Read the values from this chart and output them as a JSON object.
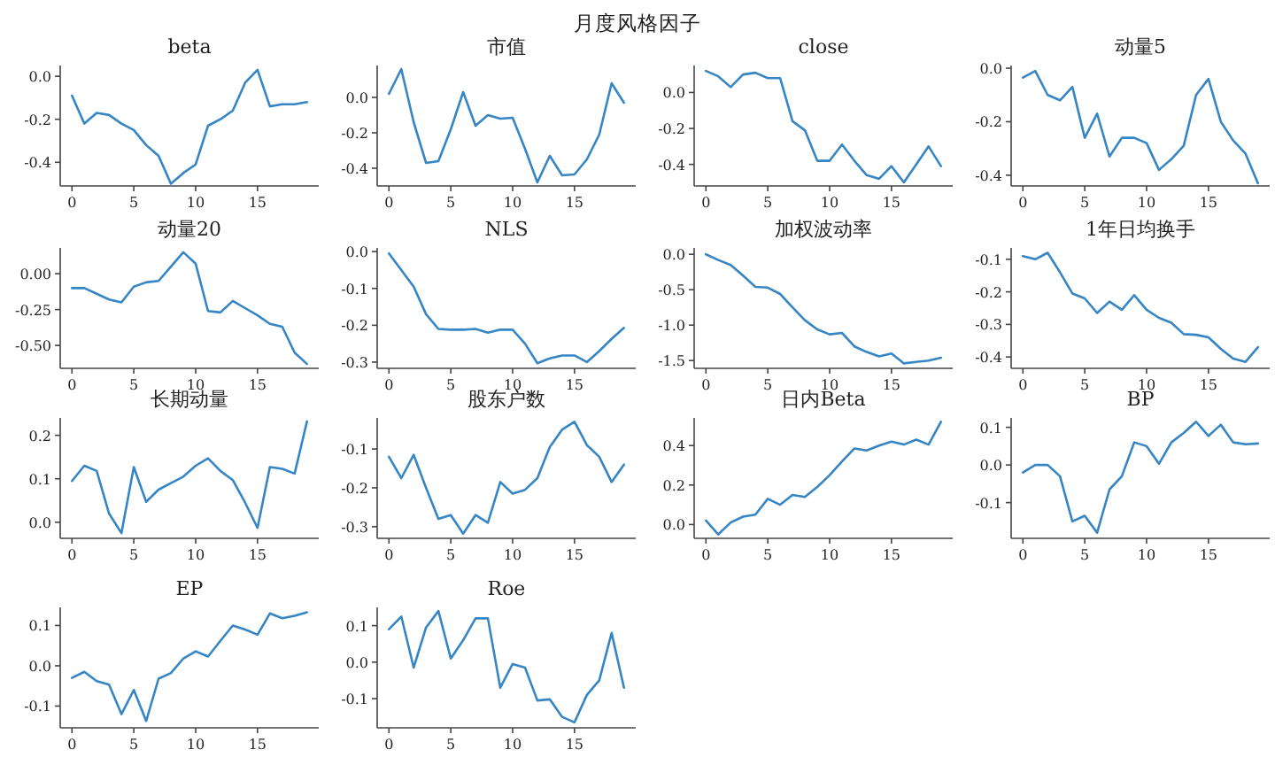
{
  "chart_data": [
    {
      "type": "line",
      "title": "beta",
      "annotations": [
        "月度风格因子"
      ],
      "x": [
        0,
        1,
        2,
        3,
        4,
        5,
        6,
        7,
        8,
        9,
        10,
        11,
        12,
        13,
        14,
        15,
        16,
        17,
        18,
        19
      ],
      "values": [
        -0.09,
        -0.22,
        -0.17,
        -0.18,
        -0.22,
        -0.25,
        -0.32,
        -0.37,
        -0.5,
        -0.45,
        -0.41,
        -0.23,
        -0.2,
        -0.16,
        -0.03,
        0.03,
        -0.14,
        -0.13,
        -0.13,
        -0.12
      ],
      "color": "#3685c4",
      "xlim": [
        -0.95,
        19.95
      ],
      "ylim": [
        -0.51,
        0.05
      ],
      "xticks": [
        0,
        5,
        10,
        15
      ],
      "yticks": [
        -0.4,
        -0.2,
        {
          "value": 0,
          "label": "0.0"
        }
      ]
    },
    {
      "type": "line",
      "title": "市值",
      "x": [
        0,
        1,
        2,
        3,
        4,
        5,
        6,
        7,
        8,
        9,
        10,
        11,
        12,
        13,
        14,
        15,
        16,
        17,
        18,
        19
      ],
      "values": [
        0.02,
        0.16,
        -0.14,
        -0.37,
        -0.36,
        -0.18,
        0.03,
        -0.16,
        -0.1,
        -0.12,
        -0.115,
        -0.29,
        -0.48,
        -0.33,
        -0.44,
        -0.435,
        -0.35,
        -0.21,
        0.08,
        -0.03
      ],
      "color": "#3685c4",
      "xlim": [
        -0.95,
        19.95
      ],
      "ylim": [
        -0.5,
        0.18
      ],
      "xticks": [
        0,
        5,
        10,
        15
      ],
      "yticks": [
        -0.4,
        -0.2,
        {
          "value": 0,
          "label": "0.0"
        }
      ]
    },
    {
      "type": "line",
      "title": "close",
      "x": [
        0,
        1,
        2,
        3,
        4,
        5,
        6,
        7,
        8,
        9,
        10,
        11,
        12,
        13,
        14,
        15,
        16,
        17,
        18,
        19
      ],
      "values": [
        0.12,
        0.09,
        0.03,
        0.1,
        0.11,
        0.08,
        0.08,
        -0.16,
        -0.21,
        -0.38,
        -0.38,
        -0.29,
        -0.38,
        -0.46,
        -0.48,
        -0.41,
        -0.5,
        -0.4,
        -0.3,
        -0.41
      ],
      "color": "#3685c4",
      "xlim": [
        -0.95,
        19.95
      ],
      "ylim": [
        -0.52,
        0.15
      ],
      "xticks": [
        0,
        5,
        10,
        15
      ],
      "yticks": [
        -0.4,
        -0.2,
        {
          "value": 0,
          "label": "0.0"
        }
      ]
    },
    {
      "type": "line",
      "title": "动量5",
      "x": [
        0,
        1,
        2,
        3,
        4,
        5,
        6,
        7,
        8,
        9,
        10,
        11,
        12,
        13,
        14,
        15,
        16,
        17,
        18,
        19
      ],
      "values": [
        -0.035,
        -0.01,
        -0.1,
        -0.12,
        -0.07,
        -0.26,
        -0.17,
        -0.33,
        -0.26,
        -0.26,
        -0.28,
        -0.38,
        -0.34,
        -0.29,
        -0.1,
        -0.04,
        -0.2,
        -0.27,
        -0.32,
        -0.43
      ],
      "color": "#3685c4",
      "xlim": [
        -0.95,
        19.95
      ],
      "ylim": [
        -0.44,
        0.01
      ],
      "xticks": [
        0,
        5,
        10,
        15
      ],
      "yticks": [
        -0.4,
        -0.2,
        {
          "value": 0,
          "label": "0.0"
        }
      ]
    },
    {
      "type": "line",
      "title": "动量20",
      "x": [
        0,
        1,
        2,
        3,
        4,
        5,
        6,
        7,
        8,
        9,
        10,
        11,
        12,
        13,
        14,
        15,
        16,
        17,
        18,
        19
      ],
      "values": [
        -0.1,
        -0.1,
        -0.14,
        -0.18,
        -0.2,
        -0.09,
        -0.06,
        -0.05,
        0.05,
        0.15,
        0.07,
        -0.26,
        -0.27,
        -0.19,
        -0.24,
        -0.29,
        -0.35,
        -0.37,
        -0.55,
        -0.63
      ],
      "color": "#3685c4",
      "xlim": [
        -0.95,
        19.95
      ],
      "ylim": [
        -0.66,
        0.18
      ],
      "xticks": [
        0,
        5,
        10,
        15
      ],
      "yticks": [
        {
          "value": -0.5,
          "label": "-0.50"
        },
        -0.25,
        {
          "value": 0,
          "label": "0.00"
        }
      ]
    },
    {
      "type": "line",
      "title": "NLS",
      "x": [
        0,
        1,
        2,
        3,
        4,
        5,
        6,
        7,
        8,
        9,
        10,
        11,
        12,
        13,
        14,
        15,
        16,
        17,
        18,
        19
      ],
      "values": [
        -0.005,
        -0.05,
        -0.095,
        -0.17,
        -0.21,
        -0.212,
        -0.212,
        -0.21,
        -0.22,
        -0.212,
        -0.212,
        -0.25,
        -0.303,
        -0.29,
        -0.282,
        -0.282,
        -0.3,
        -0.27,
        -0.237,
        -0.207
      ],
      "color": "#3685c4",
      "xlim": [
        -0.95,
        19.95
      ],
      "ylim": [
        -0.317,
        0.01
      ],
      "xticks": [
        0,
        5,
        10,
        15
      ],
      "yticks": [
        -0.3,
        -0.2,
        -0.1,
        {
          "value": 0,
          "label": "0.0"
        }
      ]
    },
    {
      "type": "line",
      "title": "加权波动率",
      "x": [
        0,
        1,
        2,
        3,
        4,
        5,
        6,
        7,
        8,
        9,
        10,
        11,
        12,
        13,
        14,
        15,
        16,
        17,
        18,
        19
      ],
      "values": [
        0,
        -0.08,
        -0.15,
        -0.3,
        -0.46,
        -0.47,
        -0.56,
        -0.75,
        -0.93,
        -1.06,
        -1.13,
        -1.11,
        -1.3,
        -1.38,
        -1.44,
        -1.4,
        -1.54,
        -1.52,
        -1.5,
        -1.46
      ],
      "color": "#3685c4",
      "xlim": [
        -0.95,
        19.95
      ],
      "ylim": [
        -1.61,
        0.09
      ],
      "xticks": [
        0,
        5,
        10,
        15
      ],
      "yticks": [
        -1.5,
        {
          "value": -1,
          "label": "-1.0"
        },
        -0.5,
        {
          "value": 0,
          "label": "0.0"
        }
      ]
    },
    {
      "type": "line",
      "title": "1年日均换手",
      "x": [
        0,
        1,
        2,
        3,
        4,
        5,
        6,
        7,
        8,
        9,
        10,
        11,
        12,
        13,
        14,
        15,
        16,
        17,
        18,
        19
      ],
      "values": [
        -0.09,
        -0.1,
        -0.08,
        -0.14,
        -0.205,
        -0.22,
        -0.265,
        -0.23,
        -0.255,
        -0.21,
        -0.255,
        -0.28,
        -0.295,
        -0.33,
        -0.332,
        -0.34,
        -0.375,
        -0.405,
        -0.415,
        -0.37
      ],
      "color": "#3685c4",
      "xlim": [
        -0.95,
        19.95
      ],
      "ylim": [
        -0.435,
        -0.065
      ],
      "xticks": [
        0,
        5,
        10,
        15
      ],
      "yticks": [
        -0.4,
        -0.3,
        -0.2,
        -0.1
      ]
    },
    {
      "type": "line",
      "title": "长期动量",
      "x": [
        0,
        1,
        2,
        3,
        4,
        5,
        6,
        7,
        8,
        9,
        10,
        11,
        12,
        13,
        14,
        15,
        16,
        17,
        18,
        19
      ],
      "values": [
        0.095,
        0.13,
        0.118,
        0.02,
        -0.025,
        0.127,
        0.047,
        0.075,
        0.09,
        0.105,
        0.13,
        0.147,
        0.118,
        0.097,
        0.045,
        -0.013,
        0.127,
        0.123,
        0.112,
        0.232
      ],
      "color": "#3685c4",
      "xlim": [
        -0.95,
        19.95
      ],
      "ylim": [
        -0.037,
        0.24
      ],
      "xticks": [
        0,
        5,
        10,
        15
      ],
      "yticks": [
        {
          "value": 0,
          "label": "0.0"
        },
        0.1,
        0.2
      ]
    },
    {
      "type": "line",
      "title": "股东户数",
      "x": [
        0,
        1,
        2,
        3,
        4,
        5,
        6,
        7,
        8,
        9,
        10,
        11,
        12,
        13,
        14,
        15,
        16,
        17,
        18,
        19
      ],
      "values": [
        -0.12,
        -0.175,
        -0.115,
        -0.2,
        -0.28,
        -0.27,
        -0.318,
        -0.27,
        -0.29,
        -0.185,
        -0.215,
        -0.205,
        -0.175,
        -0.095,
        -0.05,
        -0.03,
        -0.09,
        -0.12,
        -0.185,
        -0.14
      ],
      "color": "#3685c4",
      "xlim": [
        -0.95,
        19.95
      ],
      "ylim": [
        -0.33,
        -0.02
      ],
      "xticks": [
        0,
        5,
        10,
        15
      ],
      "yticks": [
        -0.3,
        -0.2,
        -0.1
      ]
    },
    {
      "type": "line",
      "title": "日内Beta",
      "x": [
        0,
        1,
        2,
        3,
        4,
        5,
        6,
        7,
        8,
        9,
        10,
        11,
        12,
        13,
        14,
        15,
        16,
        17,
        18,
        19
      ],
      "values": [
        0.02,
        -0.05,
        0.01,
        0.04,
        0.05,
        0.13,
        0.1,
        0.15,
        0.14,
        0.19,
        0.25,
        0.32,
        0.385,
        0.375,
        0.4,
        0.42,
        0.405,
        0.43,
        0.405,
        0.52
      ],
      "color": "#3685c4",
      "xlim": [
        -0.95,
        19.95
      ],
      "ylim": [
        -0.07,
        0.54
      ],
      "xticks": [
        0,
        5,
        10,
        15
      ],
      "yticks": [
        {
          "value": 0,
          "label": "0.0"
        },
        0.2,
        0.4
      ]
    },
    {
      "type": "line",
      "title": "BP",
      "x": [
        0,
        1,
        2,
        3,
        4,
        5,
        6,
        7,
        8,
        9,
        10,
        11,
        12,
        13,
        14,
        15,
        16,
        17,
        18,
        19
      ],
      "values": [
        -0.02,
        0,
        0,
        -0.03,
        -0.15,
        -0.135,
        -0.18,
        -0.065,
        -0.03,
        0.06,
        0.05,
        0.003,
        0.06,
        0.085,
        0.115,
        0.077,
        0.107,
        0.06,
        0.055,
        0.057
      ],
      "color": "#3685c4",
      "xlim": [
        -0.95,
        19.95
      ],
      "ylim": [
        -0.195,
        0.125
      ],
      "xticks": [
        0,
        5,
        10,
        15
      ],
      "yticks": [
        -0.1,
        {
          "value": 0,
          "label": "0.0"
        },
        0.1
      ]
    },
    {
      "type": "line",
      "title": "EP",
      "x": [
        0,
        1,
        2,
        3,
        4,
        5,
        6,
        7,
        8,
        9,
        10,
        11,
        12,
        13,
        14,
        15,
        16,
        17,
        18,
        19
      ],
      "values": [
        -0.03,
        -0.015,
        -0.038,
        -0.047,
        -0.12,
        -0.06,
        -0.137,
        -0.032,
        -0.018,
        0.018,
        0.036,
        0.023,
        0.062,
        0.1,
        0.09,
        0.077,
        0.13,
        0.118,
        0.124,
        0.133
      ],
      "color": "#3685c4",
      "xlim": [
        -0.95,
        19.95
      ],
      "ylim": [
        -0.154,
        0.145
      ],
      "xticks": [
        0,
        5,
        10,
        15
      ],
      "yticks": [
        -0.1,
        {
          "value": 0,
          "label": "0.0"
        },
        0.1
      ]
    },
    {
      "type": "line",
      "title": "Roe",
      "x": [
        0,
        1,
        2,
        3,
        4,
        5,
        6,
        7,
        8,
        9,
        10,
        11,
        12,
        13,
        14,
        15,
        16,
        17,
        18,
        19
      ],
      "values": [
        0.09,
        0.125,
        -0.015,
        0.095,
        0.14,
        0.01,
        0.06,
        0.12,
        0.12,
        -0.07,
        -0.005,
        -0.015,
        -0.105,
        -0.102,
        -0.15,
        -0.165,
        -0.09,
        -0.05,
        0.08,
        -0.07
      ],
      "color": "#3685c4",
      "xlim": [
        -0.95,
        19.95
      ],
      "ylim": [
        -0.18,
        0.15
      ],
      "xticks": [
        0,
        5,
        10,
        15
      ],
      "yticks": [
        -0.1,
        {
          "value": 0,
          "label": "0.0"
        },
        0.1
      ]
    }
  ]
}
